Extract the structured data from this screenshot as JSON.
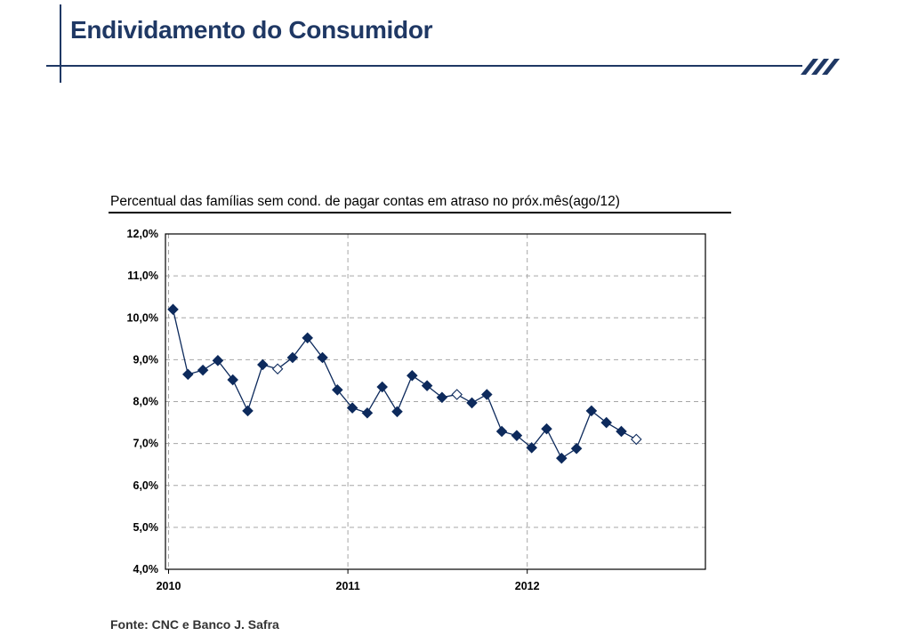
{
  "slide": {
    "title": "Endividamento do Consumidor",
    "source": "Fonte: CNC e Banco J. Safra",
    "accent_color": "#1f3864"
  },
  "chart_data": {
    "type": "line",
    "title": "Percentual das famílias sem cond. de pagar contas em atraso no próx.mês(ago/12)",
    "xlabel": "",
    "ylabel": "",
    "ylim": [
      4.0,
      12.0
    ],
    "y_ticks": [
      "4,0%",
      "5,0%",
      "6,0%",
      "7,0%",
      "8,0%",
      "9,0%",
      "10,0%",
      "11,0%",
      "12,0%"
    ],
    "x_ticks": [
      "2010",
      "2011",
      "2012"
    ],
    "grid": true,
    "series_color": "#0d2a5c",
    "series": [
      {
        "x": [
          "2010-01",
          "2010-02",
          "2010-03",
          "2010-04",
          "2010-05",
          "2010-06",
          "2010-07",
          "2010-08",
          "2010-09",
          "2010-10",
          "2010-11",
          "2010-12",
          "2011-01",
          "2011-02",
          "2011-03",
          "2011-04",
          "2011-05",
          "2011-06",
          "2011-07",
          "2011-08",
          "2011-09",
          "2011-10",
          "2011-11",
          "2011-12",
          "2012-01",
          "2012-02",
          "2012-03",
          "2012-04",
          "2012-05",
          "2012-06",
          "2012-07",
          "2012-08"
        ],
        "values": [
          10.2,
          8.65,
          8.75,
          8.98,
          8.52,
          7.78,
          8.88,
          8.78,
          9.05,
          9.52,
          9.05,
          8.28,
          7.85,
          7.73,
          8.35,
          7.76,
          8.62,
          8.38,
          8.1,
          8.17,
          7.97,
          8.17,
          7.29,
          7.19,
          6.9,
          7.35,
          6.65,
          6.88,
          7.78,
          7.5,
          7.29,
          7.1
        ],
        "hollow_markers": [
          "2010-08",
          "2011-08",
          "2012-08"
        ]
      }
    ]
  }
}
